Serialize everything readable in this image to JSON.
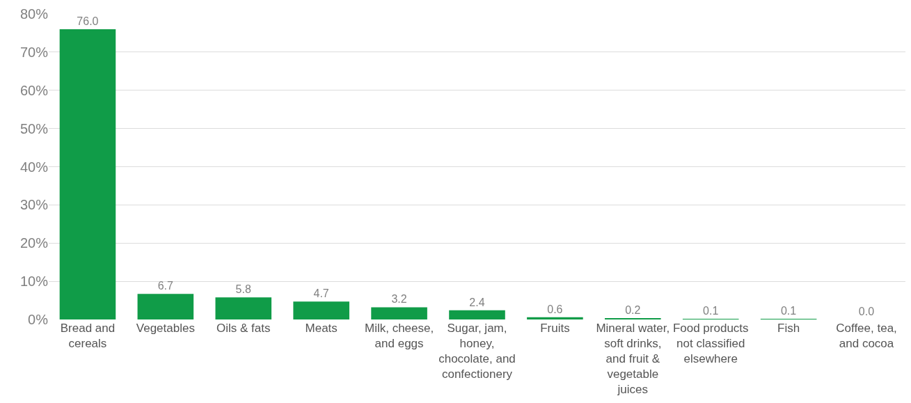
{
  "chart_data": {
    "type": "bar",
    "categories": [
      "Bread and cereals",
      "Vegetables",
      "Oils & fats",
      "Meats",
      "Milk, cheese, and eggs",
      "Sugar, jam, honey, chocolate, and confectionery",
      "Fruits",
      "Mineral water, soft drinks, and fruit & vegetable juices",
      "Food products not classified elsewhere",
      "Fish",
      "Coffee, tea, and cocoa"
    ],
    "values": [
      76.0,
      6.7,
      5.8,
      4.7,
      3.2,
      2.4,
      0.6,
      0.2,
      0.1,
      0.1,
      0.0
    ],
    "value_labels": [
      "76.0",
      "6.7",
      "5.8",
      "4.7",
      "3.2",
      "2.4",
      "0.6",
      "0.2",
      "0.1",
      "0.1",
      "0.0"
    ],
    "color": "#109c48",
    "ylim": [
      0,
      80
    ],
    "yticks": [
      {
        "value": 0,
        "label": "0%"
      },
      {
        "value": 10,
        "label": "10%"
      },
      {
        "value": 20,
        "label": "20%"
      },
      {
        "value": 30,
        "label": "30%"
      },
      {
        "value": 40,
        "label": "40%"
      },
      {
        "value": 50,
        "label": "50%"
      },
      {
        "value": 60,
        "label": "60%"
      },
      {
        "value": 70,
        "label": "70%"
      },
      {
        "value": 80,
        "label": "80%"
      }
    ],
    "grid": "y"
  }
}
